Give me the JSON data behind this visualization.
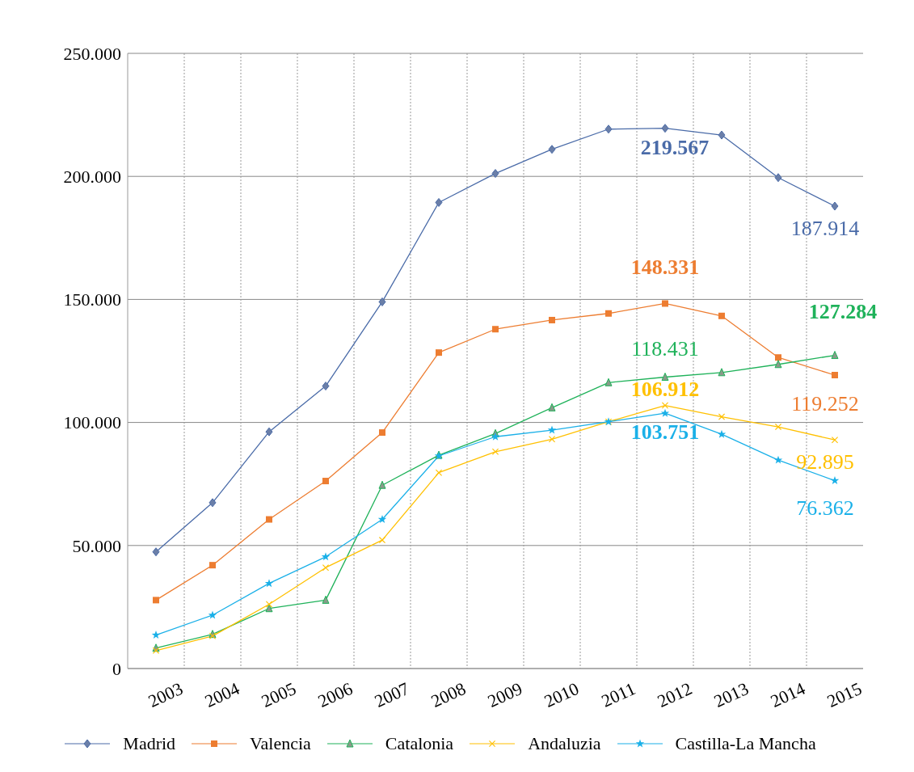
{
  "chart_data": {
    "type": "line",
    "categories": [
      "2003",
      "2004",
      "2005",
      "2006",
      "2007",
      "2008",
      "2009",
      "2010",
      "2011",
      "2012",
      "2013",
      "2014",
      "2015"
    ],
    "ylim": [
      0,
      250000
    ],
    "yticks": [
      {
        "value": 0,
        "label": "0"
      },
      {
        "value": 50000,
        "label": "50.000"
      },
      {
        "value": 100000,
        "label": "100.000"
      },
      {
        "value": 150000,
        "label": "150.000"
      },
      {
        "value": 200000,
        "label": "200.000"
      },
      {
        "value": 250000,
        "label": "250.000"
      }
    ],
    "grid": true,
    "legend": "bottom",
    "series": [
      {
        "name": "Madrid",
        "color": "#4a6ba8",
        "marker": "diamond",
        "values": [
          47400,
          67400,
          96200,
          114800,
          149000,
          189400,
          201200,
          211000,
          219200,
          219567,
          216800,
          199500,
          187914
        ],
        "value_labels": [
          null,
          null,
          null,
          null,
          null,
          null,
          null,
          null,
          null,
          "219.567",
          null,
          null,
          "187.914"
        ]
      },
      {
        "name": "Valencia",
        "color": "#ed7d31",
        "marker": "square",
        "values": [
          27800,
          42000,
          60600,
          76200,
          95900,
          128400,
          137900,
          141600,
          144300,
          148331,
          143300,
          126400,
          119252
        ],
        "value_labels": [
          null,
          null,
          null,
          null,
          null,
          null,
          null,
          null,
          null,
          "148.331",
          null,
          null,
          "119.252"
        ]
      },
      {
        "name": "Catalonia",
        "color": "#1fb25a",
        "marker": "triangle",
        "values": [
          8300,
          13900,
          24400,
          27800,
          74500,
          86700,
          95500,
          106000,
          116200,
          118431,
          120300,
          123600,
          127284
        ],
        "value_labels": [
          null,
          null,
          null,
          null,
          null,
          null,
          null,
          null,
          null,
          "118.431",
          null,
          null,
          "127.284"
        ]
      },
      {
        "name": "Andaluzia",
        "color": "#ffc000",
        "marker": "cross",
        "values": [
          7300,
          13200,
          26100,
          41000,
          52200,
          79600,
          88100,
          93200,
          100300,
          106912,
          102300,
          98200,
          92895
        ],
        "value_labels": [
          null,
          null,
          null,
          null,
          null,
          null,
          null,
          null,
          null,
          "106.912",
          null,
          null,
          "92.895"
        ]
      },
      {
        "name": "Castilla-La Mancha",
        "color": "#1ab0e8",
        "marker": "star",
        "values": [
          13600,
          21700,
          34600,
          45400,
          60600,
          86400,
          94200,
          96900,
          100300,
          103751,
          95200,
          84700,
          76362
        ],
        "value_labels": [
          null,
          null,
          null,
          null,
          null,
          null,
          null,
          null,
          null,
          "103.751",
          null,
          null,
          "76.362"
        ]
      }
    ]
  }
}
